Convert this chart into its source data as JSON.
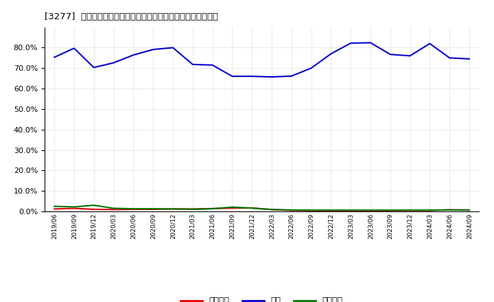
{
  "title": "[3277]  売上債権、在庫、買入債務の総資産に対する比率の推移",
  "x_labels": [
    "2019/06",
    "2019/09",
    "2019/12",
    "2020/03",
    "2020/06",
    "2020/09",
    "2020/12",
    "2021/03",
    "2021/06",
    "2021/09",
    "2021/12",
    "2022/03",
    "2022/06",
    "2022/09",
    "2022/12",
    "2023/03",
    "2023/06",
    "2023/09",
    "2023/12",
    "2024/03",
    "2024/06",
    "2024/09"
  ],
  "zaiko": [
    0.753,
    0.797,
    0.703,
    0.726,
    0.764,
    0.791,
    0.8,
    0.718,
    0.715,
    0.66,
    0.66,
    0.657,
    0.661,
    0.7,
    0.77,
    0.822,
    0.824,
    0.767,
    0.76,
    0.82,
    0.75,
    0.745
  ],
  "uriage": [
    0.012,
    0.015,
    0.01,
    0.009,
    0.01,
    0.01,
    0.012,
    0.012,
    0.014,
    0.016,
    0.017,
    0.009,
    0.005,
    0.004,
    0.004,
    0.004,
    0.004,
    0.004,
    0.005,
    0.005,
    0.008,
    0.007
  ],
  "kaiire": [
    0.025,
    0.022,
    0.03,
    0.015,
    0.013,
    0.013,
    0.012,
    0.01,
    0.013,
    0.021,
    0.016,
    0.009,
    0.007,
    0.006,
    0.006,
    0.006,
    0.006,
    0.006,
    0.006,
    0.006,
    0.007,
    0.006
  ],
  "zaiko_color": "#0000cc",
  "uriage_color": "#dd0000",
  "kaiire_color": "#007700",
  "bg_color": "#ffffff",
  "plot_bg_color": "#ffffff",
  "grid_color": "#bbbbbb",
  "ylim": [
    0.0,
    0.9
  ],
  "yticks": [
    0.0,
    0.1,
    0.2,
    0.3,
    0.4,
    0.5,
    0.6,
    0.7,
    0.8
  ],
  "legend_labels": [
    "売上傅権",
    "在庫",
    "買入偉務"
  ],
  "line_width": 1.5
}
